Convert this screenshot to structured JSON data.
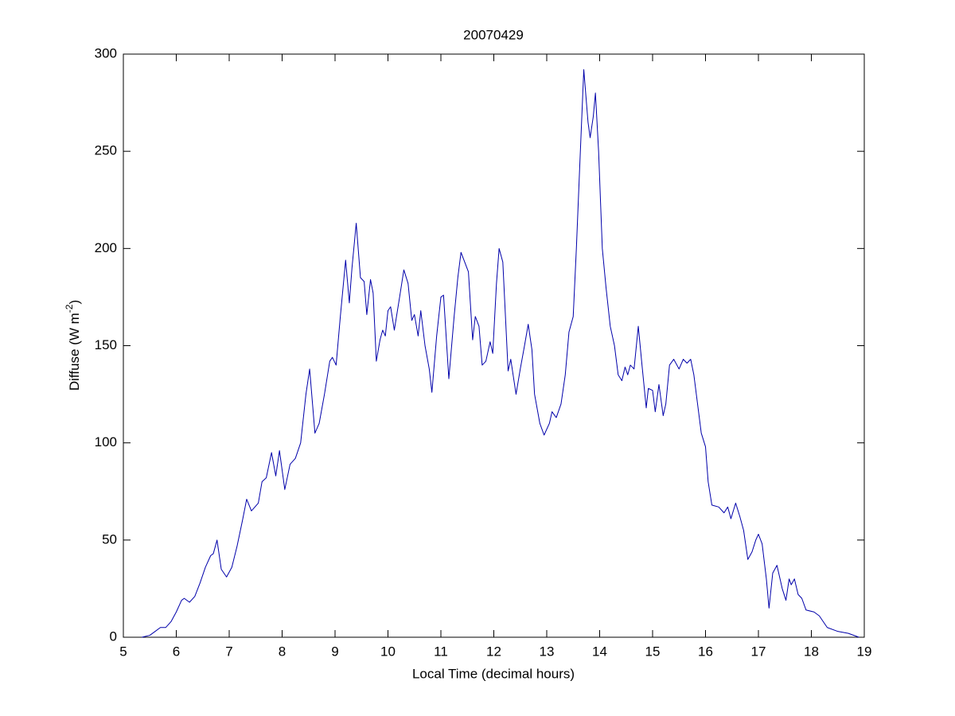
{
  "chart_data": {
    "type": "line",
    "title": "20070429",
    "xlabel": "Local Time (decimal hours)",
    "ylabel": [
      "Diffuse (W m",
      "-2",
      ")"
    ],
    "xlim": [
      5,
      19
    ],
    "ylim": [
      0,
      300
    ],
    "xticks": [
      5,
      6,
      7,
      8,
      9,
      10,
      11,
      12,
      13,
      14,
      15,
      16,
      17,
      18,
      19
    ],
    "yticks": [
      0,
      50,
      100,
      150,
      200,
      250,
      300
    ],
    "grid": false,
    "series": [
      {
        "color": "#0000aa",
        "x": [
          5.35,
          5.5,
          5.6,
          5.7,
          5.8,
          5.9,
          6.0,
          6.1,
          6.15,
          6.25,
          6.35,
          6.45,
          6.55,
          6.65,
          6.7,
          6.77,
          6.85,
          6.95,
          7.05,
          7.15,
          7.25,
          7.33,
          7.42,
          7.55,
          7.62,
          7.7,
          7.8,
          7.88,
          7.95,
          8.05,
          8.15,
          8.25,
          8.35,
          8.45,
          8.52,
          8.62,
          8.7,
          8.8,
          8.9,
          8.95,
          9.02,
          9.1,
          9.2,
          9.27,
          9.32,
          9.4,
          9.48,
          9.55,
          9.6,
          9.67,
          9.72,
          9.78,
          9.85,
          9.9,
          9.95,
          10.0,
          10.05,
          10.12,
          10.22,
          10.3,
          10.38,
          10.45,
          10.5,
          10.57,
          10.62,
          10.7,
          10.78,
          10.83,
          10.92,
          11.0,
          11.05,
          11.15,
          11.25,
          11.32,
          11.38,
          11.45,
          11.52,
          11.6,
          11.65,
          11.72,
          11.78,
          11.85,
          11.93,
          11.98,
          12.05,
          12.1,
          12.17,
          12.27,
          12.32,
          12.42,
          12.5,
          12.58,
          12.65,
          12.72,
          12.77,
          12.87,
          12.95,
          13.05,
          13.1,
          13.18,
          13.27,
          13.35,
          13.42,
          13.5,
          13.56,
          13.62,
          13.7,
          13.78,
          13.82,
          13.88,
          13.92,
          13.98,
          14.05,
          14.12,
          14.2,
          14.28,
          14.35,
          14.42,
          14.48,
          14.53,
          14.58,
          14.65,
          14.73,
          14.8,
          14.88,
          14.92,
          15.0,
          15.05,
          15.12,
          15.2,
          15.25,
          15.32,
          15.4,
          15.5,
          15.58,
          15.65,
          15.72,
          15.78,
          15.85,
          15.92,
          16.0,
          16.05,
          16.12,
          16.25,
          16.35,
          16.42,
          16.48,
          16.57,
          16.65,
          16.72,
          16.8,
          16.88,
          16.95,
          17.0,
          17.07,
          17.15,
          17.2,
          17.27,
          17.35,
          17.45,
          17.52,
          17.58,
          17.62,
          17.68,
          17.75,
          17.82,
          17.9,
          18.05,
          18.15,
          18.3,
          18.5,
          18.7,
          18.9
        ],
        "values": [
          0,
          1,
          3,
          5,
          5,
          8,
          13,
          19,
          20,
          18,
          21,
          28,
          36,
          42,
          43,
          50,
          35,
          31,
          36,
          47,
          60,
          71,
          65,
          69,
          80,
          82,
          95,
          83,
          96,
          76,
          89,
          92,
          100,
          125,
          138,
          105,
          110,
          125,
          142,
          144,
          140,
          165,
          194,
          172,
          190,
          213,
          185,
          183,
          166,
          184,
          177,
          142,
          153,
          158,
          155,
          168,
          170,
          158,
          175,
          189,
          182,
          163,
          166,
          155,
          168,
          150,
          138,
          126,
          155,
          175,
          176,
          133,
          165,
          185,
          198,
          193,
          188,
          153,
          165,
          160,
          140,
          142,
          152,
          146,
          182,
          200,
          193,
          137,
          143,
          125,
          138,
          150,
          161,
          148,
          125,
          110,
          104,
          110,
          116,
          113,
          120,
          135,
          157,
          165,
          200,
          240,
          292,
          265,
          257,
          268,
          280,
          250,
          200,
          180,
          160,
          150,
          135,
          132,
          139,
          135,
          140,
          138,
          160,
          140,
          118,
          128,
          127,
          116,
          130,
          114,
          120,
          140,
          143,
          138,
          143,
          141,
          143,
          135,
          120,
          105,
          98,
          80,
          68,
          67,
          64,
          67,
          61,
          69,
          62,
          55,
          40,
          44,
          50,
          53,
          48,
          30,
          15,
          33,
          37,
          25,
          19,
          30,
          27,
          30,
          22,
          20,
          14,
          13,
          11,
          5,
          3,
          2,
          0
        ]
      }
    ]
  }
}
